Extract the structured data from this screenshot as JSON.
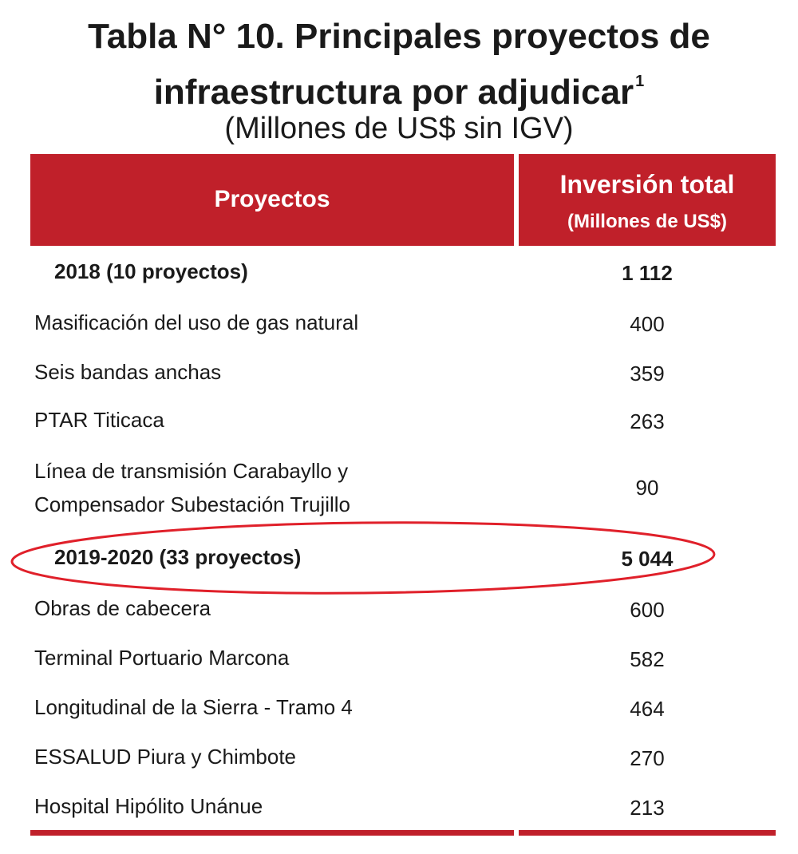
{
  "title": {
    "line1": "Tabla N° 10. Principales proyectos de",
    "line2": "infraestructura por adjudicar",
    "footnote": "1",
    "subtitle": "(Millones de US$ sin IGV)"
  },
  "header": {
    "projects": "Proyectos",
    "investment": "Inversión total",
    "investment_unit": "(Millones de US$)"
  },
  "rows": [
    {
      "name": "2018 (10 proyectos)",
      "value": "1 112",
      "group": true
    },
    {
      "name": "Masificación del uso de gas natural",
      "value": "400"
    },
    {
      "name": "Seis bandas anchas",
      "value": "359"
    },
    {
      "name": "PTAR Titicaca",
      "value": "263"
    },
    {
      "name_lines": [
        "Línea de transmisión Carabayllo y",
        "Compensador Subestación Trujillo"
      ],
      "value": "90"
    },
    {
      "name": "2019-2020 (33 proyectos)",
      "value": "5 044",
      "group": true,
      "highlighted": true
    },
    {
      "name": "Obras de cabecera",
      "value": "600"
    },
    {
      "name": "Terminal Portuario Marcona",
      "value": "582"
    },
    {
      "name": "Longitudinal de la Sierra - Tramo 4",
      "value": "464"
    },
    {
      "name": "ESSALUD Piura y Chimbote",
      "value": "270"
    },
    {
      "name": "Hospital Hipólito Unánue",
      "value": "213"
    }
  ],
  "colors": {
    "header_bg": "#c0202a",
    "header_text": "#ffffff",
    "highlight_ellipse": "#e0202a"
  }
}
